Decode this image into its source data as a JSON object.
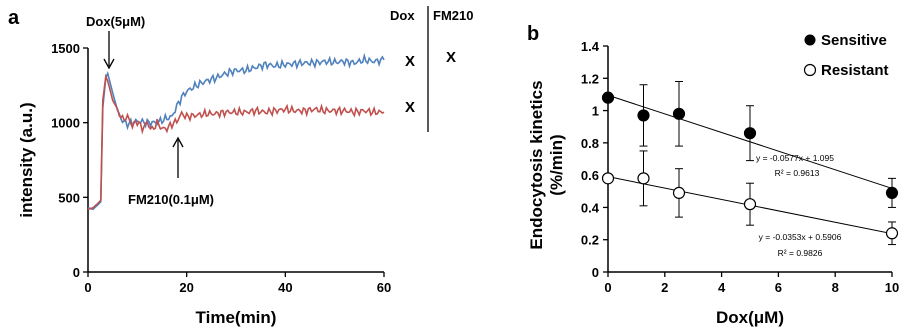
{
  "chart_data": [
    {
      "type": "line",
      "panel_label": "a",
      "xlabel": "Time(min)",
      "ylabel": "intensity (a.u.)",
      "xlim": [
        0,
        60
      ],
      "ylim": [
        0,
        1500
      ],
      "xticks": [
        "0",
        "20",
        "40",
        "60"
      ],
      "yticks": [
        "0",
        "500",
        "1000",
        "1500"
      ],
      "annotations": [
        {
          "text": "Dox(5μM)",
          "x": 4
        },
        {
          "text": "FM210(0.1μM)",
          "x": 17.6
        }
      ],
      "series": [
        {
          "color": "#4f81bd",
          "x": [
            0,
            1,
            2,
            2.6,
            3,
            3.6,
            4,
            5,
            6,
            7,
            8,
            9,
            10,
            12,
            14,
            16,
            17,
            18,
            19,
            20,
            22,
            24,
            26,
            28,
            30,
            32,
            34,
            36,
            38,
            40,
            42,
            44,
            46,
            48,
            50,
            52,
            54,
            56,
            58,
            60
          ],
          "y": [
            430,
            420,
            450,
            470,
            1100,
            1300,
            1330,
            1200,
            1080,
            1010,
            990,
            1000,
            1010,
            1000,
            1000,
            1030,
            1040,
            1110,
            1170,
            1210,
            1250,
            1280,
            1300,
            1330,
            1350,
            1350,
            1370,
            1390,
            1380,
            1390,
            1395,
            1400,
            1400,
            1410,
            1405,
            1410,
            1400,
            1420,
            1410,
            1420
          ]
        },
        {
          "color": "#c0504d",
          "x": [
            0,
            1,
            2,
            2.6,
            3,
            3.6,
            4,
            5,
            6,
            7,
            8,
            9,
            10,
            11,
            12,
            13,
            14,
            15,
            16,
            17,
            18,
            19,
            20,
            22,
            24,
            26,
            28,
            30,
            32,
            34,
            36,
            38,
            40,
            42,
            44,
            46,
            48,
            50,
            52,
            54,
            56,
            58,
            60
          ],
          "y": [
            420,
            430,
            460,
            480,
            1150,
            1310,
            1280,
            1150,
            1090,
            1020,
            1040,
            980,
            1010,
            960,
            1000,
            950,
            1000,
            960,
            960,
            990,
            1010,
            1060,
            1040,
            1050,
            1060,
            1060,
            1070,
            1070,
            1070,
            1080,
            1070,
            1080,
            1090,
            1080,
            1080,
            1090,
            1080,
            1080,
            1080,
            1070,
            1080,
            1070,
            1070
          ]
        }
      ],
      "table": {
        "headers": [
          "Dox",
          "FM210"
        ],
        "rows": [
          [
            "X",
            "X"
          ],
          [
            "X",
            ""
          ]
        ]
      }
    },
    {
      "type": "scatter",
      "panel_label": "b",
      "xlabel": "Dox(μM)",
      "ylabel": "Endocytosis kinetics (%/min)",
      "ylabel_lines": [
        "Endocytosis kinetics",
        "(%/min)"
      ],
      "xlim": [
        0,
        10
      ],
      "ylim": [
        0,
        1.4
      ],
      "xticks": [
        "0",
        "2",
        "4",
        "6",
        "8",
        "10"
      ],
      "yticks": [
        "0",
        "0.2",
        "0.4",
        "0.6",
        "0.8",
        "1",
        "1.2",
        "1.4"
      ],
      "series": [
        {
          "name": "Sensitive",
          "marker": "filled",
          "x": [
            0,
            1.25,
            2.5,
            5,
            10
          ],
          "y": [
            1.08,
            0.97,
            0.98,
            0.86,
            0.49
          ],
          "err": [
            0.0,
            0.19,
            0.2,
            0.17,
            0.09
          ],
          "fit": {
            "slope": -0.0577,
            "intercept": 1.095
          },
          "equation": "y = -0.0577x + 1.095",
          "r2": "R² = 0.9613"
        },
        {
          "name": "Resistant",
          "marker": "open",
          "x": [
            0,
            1.25,
            2.5,
            5,
            10
          ],
          "y": [
            0.58,
            0.58,
            0.49,
            0.42,
            0.24
          ],
          "err": [
            0.0,
            0.17,
            0.15,
            0.13,
            0.07
          ],
          "fit": {
            "slope": -0.0353,
            "intercept": 0.5906
          },
          "equation": "y = -0.0353x + 0.5906",
          "r2": "R² = 0.9826"
        }
      ]
    }
  ]
}
